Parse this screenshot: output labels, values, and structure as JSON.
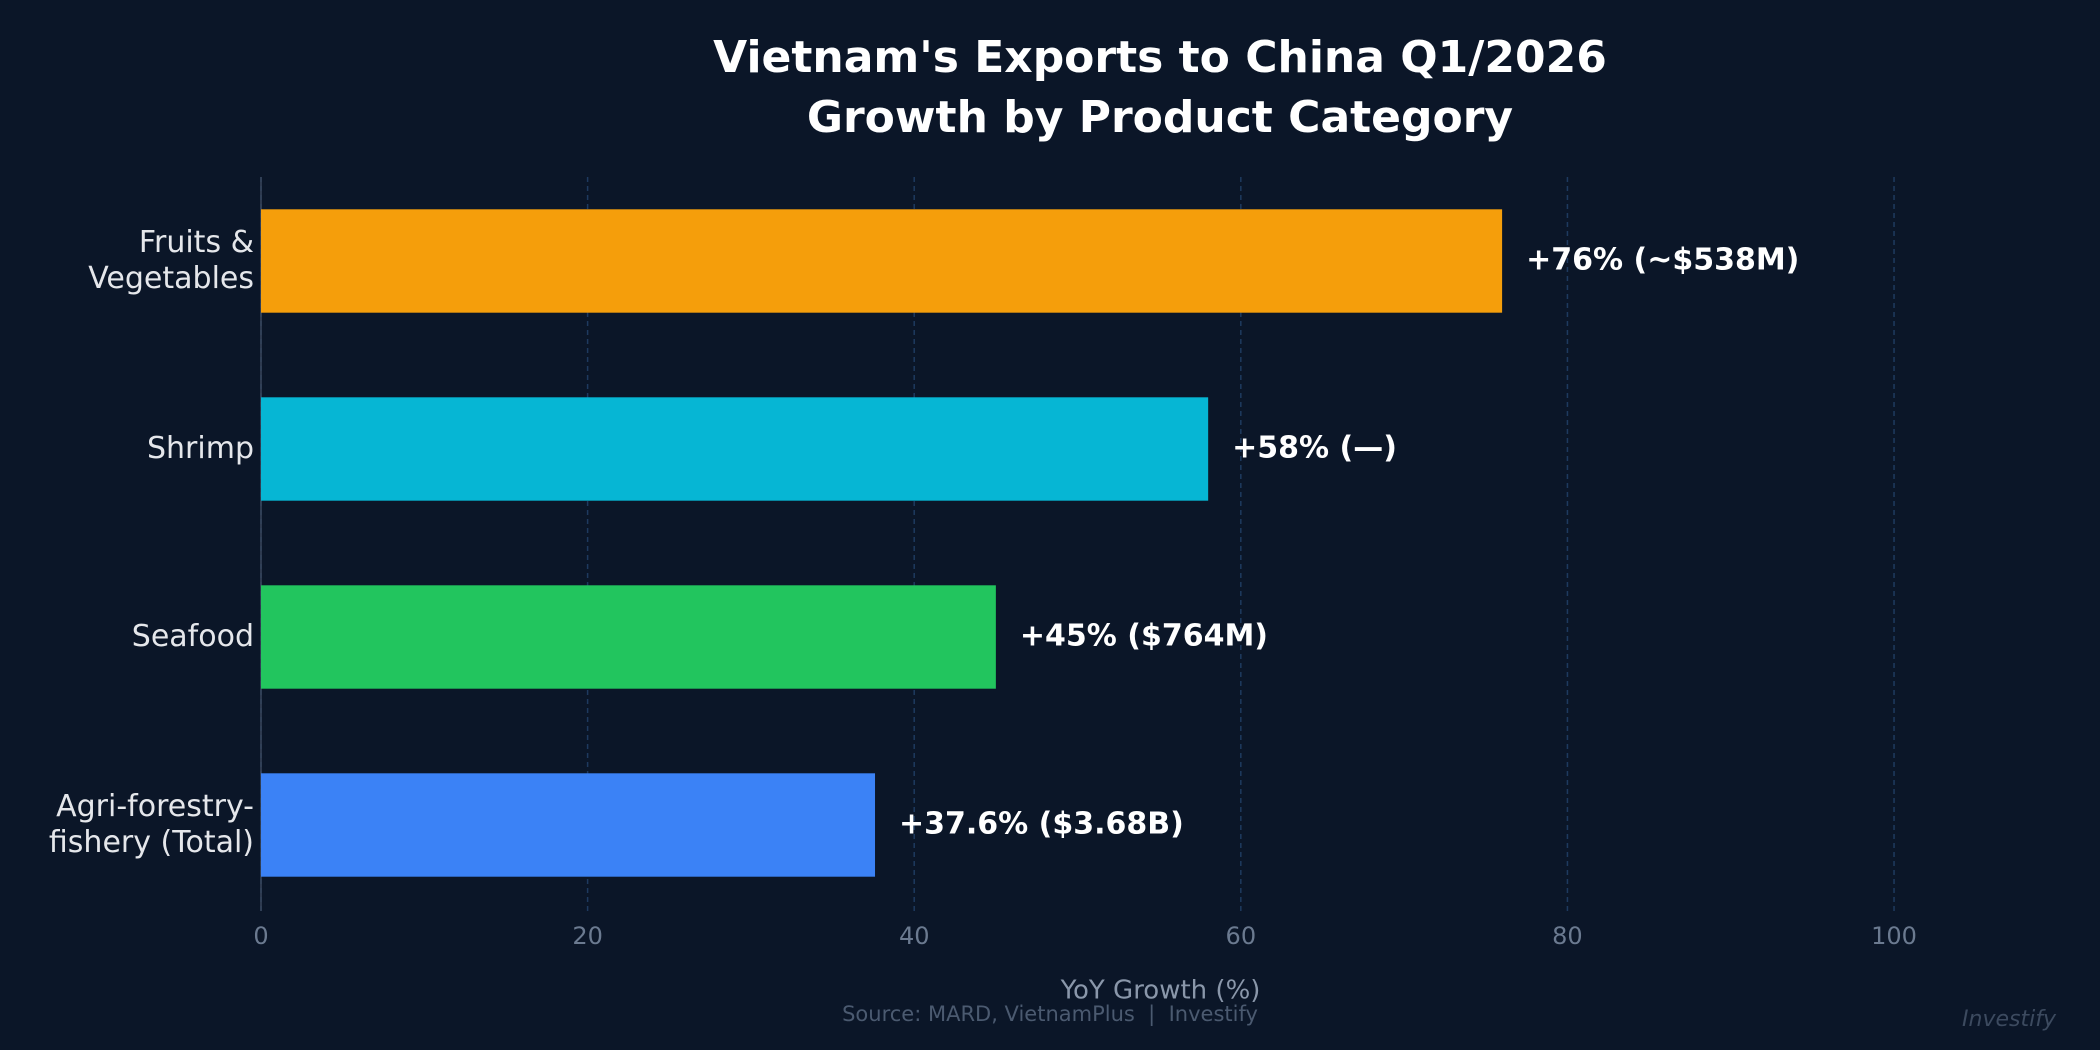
{
  "chart_data": {
    "type": "barh",
    "title": "Vietnam's Exports to China Q1/2026\nGrowth by Product Category",
    "categories": [
      "Fruits &\nVegetables",
      "Shrimp",
      "Seafood",
      "Agri-forestry-\nfishery (Total)"
    ],
    "values": [
      76,
      58,
      45,
      37.6
    ],
    "value_labels": [
      "+76%  (~$538M)",
      "+58%  (—)",
      "+45%  ($764M)",
      "+37.6%  ($3.68B)"
    ],
    "colors": [
      "#f59e0b",
      "#06b6d4",
      "#22c55e",
      "#3b82f6"
    ],
    "xlim": [
      0,
      112
    ],
    "xticks": [
      0,
      20,
      40,
      60,
      80,
      100
    ],
    "grid": true,
    "xlabel": "YoY Growth (%)",
    "source": "Source: MARD, VietnamPlus  |  Investify",
    "watermark": "Investify"
  }
}
